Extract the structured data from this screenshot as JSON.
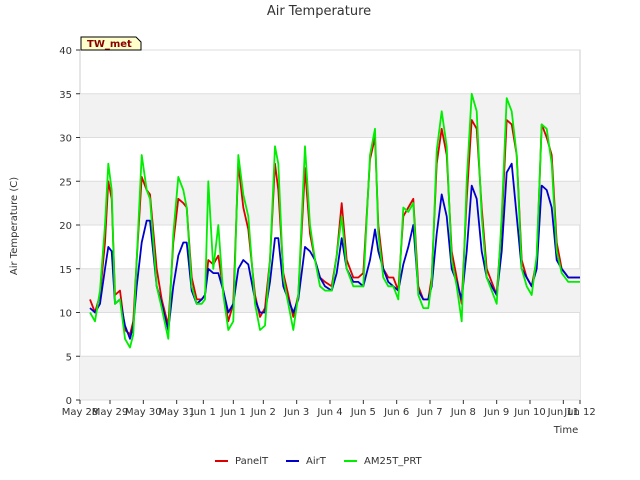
{
  "chart_data": {
    "type": "line",
    "title": "Air Temperature",
    "xlabel": "Time",
    "ylabel": "Air Temperature (C)",
    "ylim": [
      0,
      40
    ],
    "yticks": [
      0,
      5,
      10,
      15,
      20,
      25,
      30,
      35,
      40
    ],
    "xlim": [
      0,
      15
    ],
    "xtick_labels": [
      "May 28",
      "May 29",
      "May 30",
      "May 31",
      "Jun 1",
      "Jun 1",
      "Jun 2",
      "Jun 3",
      "Jun 4",
      "Jun 5",
      "Jun 6",
      "Jun 7",
      "Jun 8",
      "Jun 9",
      "Jun 10",
      "Jun 11",
      "Jun 12"
    ],
    "xtick_positions": [
      0,
      0.9,
      1.9,
      2.9,
      3.7,
      4.6,
      5.5,
      6.5,
      7.5,
      8.5,
      9.5,
      10.5,
      11.5,
      12.5,
      13.5,
      14.5,
      15.0
    ],
    "grid": true,
    "station_label": "TW_met",
    "legend_position": "bottom",
    "series": [
      {
        "name": "PanelT",
        "color": "#dd0000",
        "x": [
          0.3,
          0.45,
          0.6,
          0.75,
          0.85,
          0.95,
          1.05,
          1.2,
          1.35,
          1.5,
          1.6,
          1.7,
          1.85,
          2.0,
          2.1,
          2.3,
          2.45,
          2.65,
          2.8,
          2.95,
          3.1,
          3.2,
          3.35,
          3.5,
          3.65,
          3.75,
          3.85,
          4.0,
          4.15,
          4.3,
          4.45,
          4.6,
          4.75,
          4.9,
          5.05,
          5.25,
          5.4,
          5.55,
          5.7,
          5.85,
          5.95,
          6.1,
          6.25,
          6.4,
          6.55,
          6.75,
          6.9,
          7.05,
          7.2,
          7.35,
          7.55,
          7.7,
          7.85,
          8.0,
          8.2,
          8.35,
          8.5,
          8.7,
          8.85,
          8.95,
          9.1,
          9.25,
          9.4,
          9.55,
          9.7,
          9.85,
          10.0,
          10.15,
          10.3,
          10.45,
          10.55,
          10.7,
          10.85,
          11.0,
          11.15,
          11.3,
          11.45,
          11.6,
          11.75,
          11.9,
          12.05,
          12.2,
          12.35,
          12.5,
          12.65,
          12.8,
          12.95,
          13.1,
          13.25,
          13.4,
          13.55,
          13.7,
          13.85,
          14.0,
          14.15,
          14.3,
          14.45,
          14.55,
          14.65,
          14.75,
          14.85,
          14.95,
          15.0
        ],
        "y": [
          11.5,
          10.0,
          12.0,
          18.0,
          25.0,
          23.0,
          12.0,
          12.5,
          8.0,
          7.5,
          9.0,
          16.0,
          25.5,
          24.0,
          23.5,
          15.0,
          11.5,
          8.5,
          18.0,
          23.0,
          22.5,
          22.0,
          14.0,
          11.5,
          11.5,
          12.0,
          16.0,
          15.5,
          16.5,
          12.5,
          9.0,
          11.0,
          27.0,
          22.0,
          19.5,
          12.0,
          9.5,
          10.5,
          16.0,
          27.0,
          24.0,
          14.5,
          12.0,
          9.5,
          12.0,
          26.5,
          19.0,
          16.0,
          14.0,
          13.5,
          13.0,
          16.5,
          22.5,
          16.0,
          14.0,
          14.0,
          14.5,
          27.5,
          30.0,
          20.0,
          15.0,
          14.0,
          14.0,
          12.5,
          21.0,
          22.0,
          23.0,
          13.0,
          11.5,
          11.5,
          14.0,
          27.0,
          31.0,
          28.0,
          17.0,
          14.0,
          11.0,
          23.0,
          32.0,
          31.0,
          22.0,
          15.0,
          13.5,
          12.0,
          20.0,
          32.0,
          31.5,
          28.0,
          16.0,
          14.0,
          13.0,
          16.0,
          31.5,
          30.0,
          28.0,
          18.0,
          15.0,
          14.5,
          14.0,
          14.0,
          14.0,
          14.0,
          14.0
        ]
      },
      {
        "name": "AirT",
        "color": "#0000cc",
        "x": [
          0.3,
          0.45,
          0.6,
          0.75,
          0.85,
          0.95,
          1.05,
          1.2,
          1.35,
          1.5,
          1.6,
          1.7,
          1.85,
          2.0,
          2.1,
          2.3,
          2.45,
          2.65,
          2.8,
          2.95,
          3.1,
          3.2,
          3.35,
          3.5,
          3.65,
          3.75,
          3.85,
          4.0,
          4.15,
          4.3,
          4.45,
          4.6,
          4.75,
          4.9,
          5.05,
          5.25,
          5.4,
          5.55,
          5.7,
          5.85,
          5.95,
          6.1,
          6.25,
          6.4,
          6.55,
          6.75,
          6.9,
          7.05,
          7.2,
          7.35,
          7.55,
          7.7,
          7.85,
          8.0,
          8.2,
          8.35,
          8.5,
          8.7,
          8.85,
          8.95,
          9.1,
          9.25,
          9.4,
          9.55,
          9.7,
          9.85,
          10.0,
          10.15,
          10.3,
          10.45,
          10.55,
          10.7,
          10.85,
          11.0,
          11.15,
          11.3,
          11.45,
          11.6,
          11.75,
          11.9,
          12.05,
          12.2,
          12.35,
          12.5,
          12.65,
          12.8,
          12.95,
          13.1,
          13.25,
          13.4,
          13.55,
          13.7,
          13.85,
          14.0,
          14.15,
          14.3,
          14.45,
          14.55,
          14.65,
          14.75,
          14.85,
          14.95,
          15.0
        ],
        "y": [
          10.5,
          10.0,
          11.0,
          15.0,
          17.5,
          17.0,
          11.0,
          11.5,
          8.5,
          7.0,
          8.5,
          13.0,
          18.0,
          20.5,
          20.5,
          13.0,
          11.0,
          8.0,
          13.0,
          16.5,
          18.0,
          18.0,
          12.5,
          11.0,
          11.5,
          12.0,
          15.0,
          14.5,
          14.5,
          12.5,
          10.0,
          11.0,
          15.0,
          16.0,
          15.5,
          11.5,
          10.0,
          10.0,
          13.5,
          18.5,
          18.5,
          13.0,
          11.5,
          10.0,
          11.5,
          17.5,
          17.0,
          16.0,
          14.0,
          13.0,
          12.5,
          14.5,
          18.5,
          15.0,
          13.5,
          13.5,
          13.0,
          16.0,
          19.5,
          17.0,
          15.0,
          13.5,
          13.0,
          12.5,
          15.5,
          17.5,
          20.0,
          12.5,
          11.5,
          11.5,
          13.0,
          19.0,
          23.5,
          21.0,
          15.0,
          13.5,
          11.5,
          17.0,
          24.5,
          23.0,
          17.0,
          14.0,
          13.0,
          12.0,
          17.0,
          26.0,
          27.0,
          21.0,
          15.0,
          14.0,
          13.0,
          15.0,
          24.5,
          24.0,
          22.0,
          16.0,
          15.0,
          14.5,
          14.0,
          14.0,
          14.0,
          14.0,
          14.0
        ]
      },
      {
        "name": "AM25T_PRT",
        "color": "#00ee00",
        "x": [
          0.3,
          0.45,
          0.6,
          0.75,
          0.85,
          0.95,
          1.05,
          1.2,
          1.35,
          1.5,
          1.6,
          1.7,
          1.85,
          2.0,
          2.1,
          2.3,
          2.45,
          2.65,
          2.8,
          2.95,
          3.1,
          3.2,
          3.35,
          3.5,
          3.65,
          3.75,
          3.85,
          4.0,
          4.15,
          4.3,
          4.45,
          4.6,
          4.75,
          4.9,
          5.05,
          5.25,
          5.4,
          5.55,
          5.7,
          5.85,
          5.95,
          6.1,
          6.25,
          6.4,
          6.55,
          6.75,
          6.9,
          7.05,
          7.2,
          7.35,
          7.55,
          7.7,
          7.85,
          8.0,
          8.2,
          8.35,
          8.5,
          8.7,
          8.85,
          8.95,
          9.1,
          9.25,
          9.4,
          9.55,
          9.7,
          9.85,
          10.0,
          10.15,
          10.3,
          10.45,
          10.55,
          10.7,
          10.85,
          11.0,
          11.15,
          11.3,
          11.45,
          11.6,
          11.75,
          11.9,
          12.05,
          12.2,
          12.35,
          12.5,
          12.65,
          12.8,
          12.95,
          13.1,
          13.25,
          13.4,
          13.55,
          13.7,
          13.85,
          14.0,
          14.15,
          14.3,
          14.45,
          14.55,
          14.65,
          14.75,
          14.85,
          14.95,
          15.0
        ],
        "y": [
          10.0,
          9.0,
          12.5,
          20.0,
          27.0,
          24.0,
          11.0,
          11.5,
          7.0,
          6.0,
          7.5,
          16.0,
          28.0,
          24.0,
          23.0,
          13.0,
          10.5,
          7.0,
          19.0,
          25.5,
          24.0,
          22.0,
          13.0,
          11.0,
          11.0,
          11.5,
          25.0,
          15.0,
          20.0,
          12.0,
          8.0,
          9.0,
          28.0,
          23.5,
          21.0,
          11.0,
          8.0,
          8.5,
          16.0,
          29.0,
          27.0,
          14.0,
          11.0,
          8.0,
          12.0,
          29.0,
          20.0,
          16.0,
          13.0,
          12.5,
          12.5,
          16.5,
          21.0,
          15.0,
          13.0,
          13.0,
          13.0,
          28.0,
          31.0,
          19.0,
          14.0,
          13.0,
          13.0,
          11.5,
          22.0,
          21.5,
          22.5,
          12.0,
          10.5,
          10.5,
          13.5,
          28.5,
          33.0,
          29.0,
          16.0,
          13.0,
          9.0,
          25.0,
          35.0,
          33.0,
          21.0,
          14.0,
          12.5,
          11.0,
          21.0,
          34.5,
          33.0,
          28.0,
          15.0,
          13.0,
          12.0,
          16.5,
          31.5,
          31.0,
          27.0,
          17.0,
          14.5,
          14.0,
          13.5,
          13.5,
          13.5,
          13.5,
          13.5
        ]
      }
    ]
  }
}
